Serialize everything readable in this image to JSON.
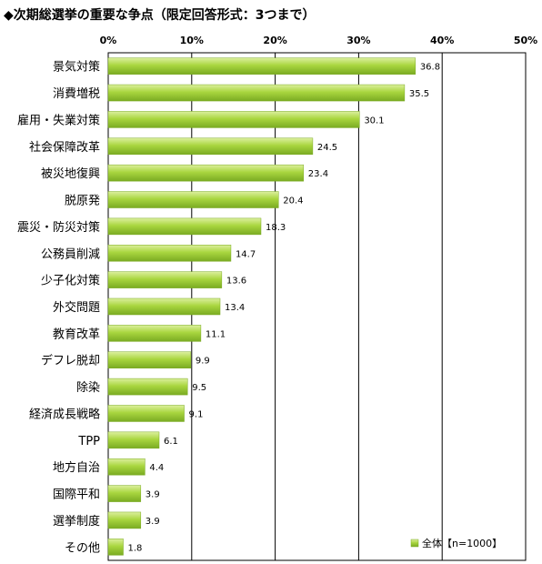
{
  "chart_data": {
    "type": "bar",
    "orientation": "horizontal",
    "title": "◆次期総選挙の重要な争点（限定回答形式：3つまで）",
    "categories": [
      "景気対策",
      "消費増税",
      "雇用・失業対策",
      "社会保障改革",
      "被災地復興",
      "脱原発",
      "震災・防災対策",
      "公務員削減",
      "少子化対策",
      "外交問題",
      "教育改革",
      "デフレ脱却",
      "除染",
      "経済成長戦略",
      "TPP",
      "地方自治",
      "国際平和",
      "選挙制度",
      "その他"
    ],
    "series": [
      {
        "name": "全体【n=1000】",
        "values": [
          36.8,
          35.5,
          30.1,
          24.5,
          23.4,
          20.4,
          18.3,
          14.7,
          13.6,
          13.4,
          11.1,
          9.9,
          9.5,
          9.1,
          6.1,
          4.4,
          3.9,
          3.9,
          1.8
        ]
      }
    ],
    "value_labels": [
      "36.8",
      "35.5",
      "30.1",
      "24.5",
      "23.4",
      "20.4",
      "18.3",
      "14.7",
      "13.6",
      "13.4",
      "11.1",
      "9.9",
      "9.5",
      "9.1",
      "6.1",
      "4.4",
      "3.9",
      "3.9",
      "1.8"
    ],
    "xticks": [
      "0%",
      "10%",
      "20%",
      "30%",
      "40%",
      "50%"
    ],
    "xlim": [
      0,
      50
    ],
    "grid": true,
    "legend_position": "bottom-right",
    "colors": {
      "bar": "#99cc33",
      "bar_light": "#dcef9e",
      "bar_dark": "#7aab22",
      "grid": "#000000"
    }
  }
}
